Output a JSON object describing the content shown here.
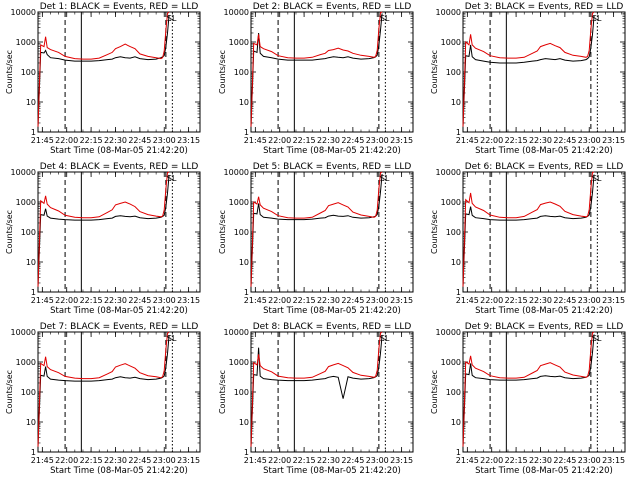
{
  "chart_data": {
    "type": "line",
    "x_unit": "time (HH:MM, 08-Mar-05)",
    "y_scale": "log",
    "ylim": [
      1,
      10000
    ],
    "xlim": [
      "21:42:20",
      "23:22:00"
    ],
    "x_ticks": [
      "21:45",
      "22:00",
      "22:15",
      "22:30",
      "22:45",
      "23:00",
      "23:15"
    ],
    "y_ticks": [
      "1",
      "10",
      "100",
      "1000",
      "10000"
    ],
    "ylabel": "Counts/sec",
    "xlabel": "Start Time (08-Mar-05 21:42:20)",
    "legend_marker": "SL",
    "markers": [
      {
        "time": "21:59:00",
        "style": "dashed"
      },
      {
        "time": "22:09:00",
        "style": "solid"
      },
      {
        "time": "23:01:00",
        "style": "dashed"
      },
      {
        "time": "23:05:00",
        "style": "dotted"
      }
    ],
    "x_times": [
      "21:42:20",
      "21:44:00",
      "21:46:00",
      "21:47:00",
      "21:48:00",
      "21:50:00",
      "21:55:00",
      "21:59:00",
      "22:05:00",
      "22:10:00",
      "22:15:00",
      "22:20:00",
      "22:25:00",
      "22:28:00",
      "22:30:00",
      "22:33:00",
      "22:36:00",
      "22:39:00",
      "22:42:00",
      "22:45:00",
      "22:50:00",
      "22:55:00",
      "22:58:00",
      "22:59:00",
      "23:00:00",
      "23:01:00",
      "23:02:00",
      "23:03:00"
    ],
    "panels": [
      {
        "title": "Det 1: BLACK = Events, RED = LLD",
        "series": [
          {
            "name": "Events",
            "color": "#000000",
            "values": [
              1.5,
              450,
              430,
              520,
              380,
              300,
              280,
              250,
              230,
              230,
              230,
              240,
              260,
              270,
              300,
              320,
              300,
              290,
              320,
              280,
              260,
              270,
              300,
              320,
              350,
              700,
              2000,
              8000
            ]
          },
          {
            "name": "LLD",
            "color": "#e00000",
            "values": [
              1.5,
              800,
              700,
              1500,
              650,
              560,
              450,
              330,
              280,
              270,
              270,
              290,
              380,
              450,
              600,
              700,
              850,
              700,
              600,
              400,
              330,
              300,
              280,
              300,
              500,
              2500,
              9000,
              10000
            ]
          }
        ]
      },
      {
        "title": "Det 2: BLACK = Events, RED = LLD",
        "series": [
          {
            "name": "Events",
            "color": "#000000",
            "values": [
              1.5,
              500,
              450,
              2000,
              420,
              330,
              300,
              270,
              250,
              250,
              250,
              250,
              270,
              280,
              300,
              320,
              310,
              300,
              320,
              290,
              270,
              280,
              300,
              320,
              360,
              800,
              2500,
              9000
            ]
          },
          {
            "name": "LLD",
            "color": "#e00000",
            "values": [
              1.5,
              900,
              800,
              1800,
              700,
              600,
              480,
              350,
              300,
              290,
              290,
              310,
              380,
              420,
              520,
              560,
              620,
              540,
              500,
              420,
              360,
              330,
              310,
              330,
              520,
              2800,
              9500,
              10000
            ]
          }
        ]
      },
      {
        "title": "Det 3: BLACK = Events, RED = LLD",
        "series": [
          {
            "name": "Events",
            "color": "#000000",
            "values": [
              1.5,
              350,
              330,
              800,
              320,
              260,
              230,
              210,
              200,
              200,
              200,
              210,
              230,
              240,
              260,
              280,
              270,
              260,
              280,
              250,
              230,
              240,
              260,
              280,
              320,
              650,
              1800,
              7500
            ]
          },
          {
            "name": "LLD",
            "color": "#e00000",
            "values": [
              1.5,
              1000,
              800,
              1800,
              800,
              620,
              480,
              350,
              300,
              290,
              290,
              310,
              420,
              500,
              700,
              800,
              900,
              750,
              650,
              450,
              360,
              330,
              310,
              330,
              520,
              2700,
              9000,
              10000
            ]
          }
        ]
      },
      {
        "title": "Det 4: BLACK = Events, RED = LLD",
        "series": [
          {
            "name": "Events",
            "color": "#000000",
            "values": [
              1.5,
              380,
              360,
              600,
              340,
              290,
              270,
              260,
              250,
              250,
              250,
              260,
              280,
              290,
              330,
              350,
              330,
              320,
              340,
              300,
              280,
              290,
              310,
              330,
              360,
              700,
              2000,
              8000
            ]
          },
          {
            "name": "LLD",
            "color": "#e00000",
            "values": [
              1.5,
              1100,
              900,
              1600,
              850,
              650,
              500,
              360,
              310,
              300,
              300,
              320,
              450,
              550,
              800,
              900,
              1000,
              850,
              700,
              480,
              380,
              340,
              320,
              340,
              540,
              2800,
              9500,
              10000
            ]
          }
        ]
      },
      {
        "title": "Det 5: BLACK = Events, RED = LLD",
        "series": [
          {
            "name": "Events",
            "color": "#000000",
            "values": [
              1.5,
              420,
              400,
              900,
              380,
              310,
              290,
              270,
              260,
              260,
              260,
              270,
              290,
              300,
              340,
              360,
              340,
              330,
              350,
              310,
              290,
              300,
              320,
              340,
              380,
              750,
              2200,
              8500
            ]
          },
          {
            "name": "LLD",
            "color": "#e00000",
            "values": [
              1.5,
              1000,
              850,
              1500,
              800,
              620,
              480,
              350,
              300,
              290,
              290,
              310,
              430,
              520,
              750,
              850,
              950,
              800,
              680,
              460,
              370,
              330,
              310,
              330,
              530,
              2800,
              9300,
              10000
            ]
          }
        ]
      },
      {
        "title": "Det 6: BLACK = Events, RED = LLD",
        "series": [
          {
            "name": "Events",
            "color": "#000000",
            "values": [
              1.5,
              400,
              380,
              700,
              360,
              300,
              280,
              260,
              250,
              250,
              250,
              260,
              280,
              290,
              330,
              350,
              330,
              320,
              340,
              300,
              280,
              290,
              310,
              330,
              370,
              720,
              2100,
              8200
            ]
          },
          {
            "name": "LLD",
            "color": "#e00000",
            "values": [
              1.5,
              1200,
              950,
              2000,
              900,
              680,
              520,
              370,
              310,
              300,
              300,
              330,
              460,
              560,
              820,
              920,
              1000,
              860,
              720,
              490,
              380,
              340,
              320,
              340,
              550,
              2900,
              9600,
              10000
            ]
          }
        ]
      },
      {
        "title": "Det 7: BLACK = Events, RED = LLD",
        "series": [
          {
            "name": "Events",
            "color": "#000000",
            "values": [
              1.5,
              360,
              340,
              700,
              330,
              270,
              250,
              240,
              230,
              230,
              230,
              240,
              260,
              270,
              300,
              320,
              300,
              290,
              310,
              280,
              260,
              270,
              290,
              310,
              340,
              680,
              1900,
              7800
            ]
          },
          {
            "name": "LLD",
            "color": "#e00000",
            "values": [
              1.5,
              900,
              750,
              1500,
              700,
              560,
              440,
              330,
              290,
              280,
              280,
              300,
              400,
              480,
              680,
              780,
              880,
              740,
              620,
              440,
              350,
              320,
              300,
              320,
              510,
              2700,
              9000,
              10000
            ]
          }
        ]
      },
      {
        "title": "Det 8: BLACK = Events, RED = LLD",
        "series": [
          {
            "name": "Events",
            "color": "#000000",
            "values": [
              1.5,
              380,
              360,
              3000,
              340,
              280,
              260,
              250,
              240,
              240,
              240,
              250,
              270,
              280,
              310,
              330,
              310,
              60,
              320,
              290,
              270,
              280,
              300,
              320,
              350,
              700,
              2000,
              8000
            ]
          },
          {
            "name": "LLD",
            "color": "#e00000",
            "values": [
              1.5,
              950,
              800,
              1800,
              760,
              600,
              470,
              340,
              300,
              290,
              290,
              310,
              410,
              490,
              700,
              800,
              900,
              760,
              640,
              450,
              360,
              330,
              310,
              330,
              520,
              2800,
              9200,
              10000
            ]
          }
        ]
      },
      {
        "title": "Det 9: BLACK = Events, RED = LLD",
        "series": [
          {
            "name": "Events",
            "color": "#000000",
            "values": [
              1.5,
              400,
              380,
              900,
              360,
              300,
              280,
              260,
              250,
              250,
              250,
              260,
              280,
              290,
              330,
              350,
              330,
              320,
              340,
              300,
              280,
              290,
              310,
              330,
              360,
              720,
              2100,
              8300
            ]
          },
          {
            "name": "LLD",
            "color": "#e00000",
            "values": [
              1.5,
              1000,
              850,
              1600,
              800,
              620,
              480,
              350,
              300,
              290,
              290,
              310,
              430,
              520,
              750,
              850,
              950,
              800,
              680,
              460,
              370,
              330,
              310,
              330,
              530,
              2800,
              9300,
              10000
            ]
          }
        ]
      }
    ]
  }
}
